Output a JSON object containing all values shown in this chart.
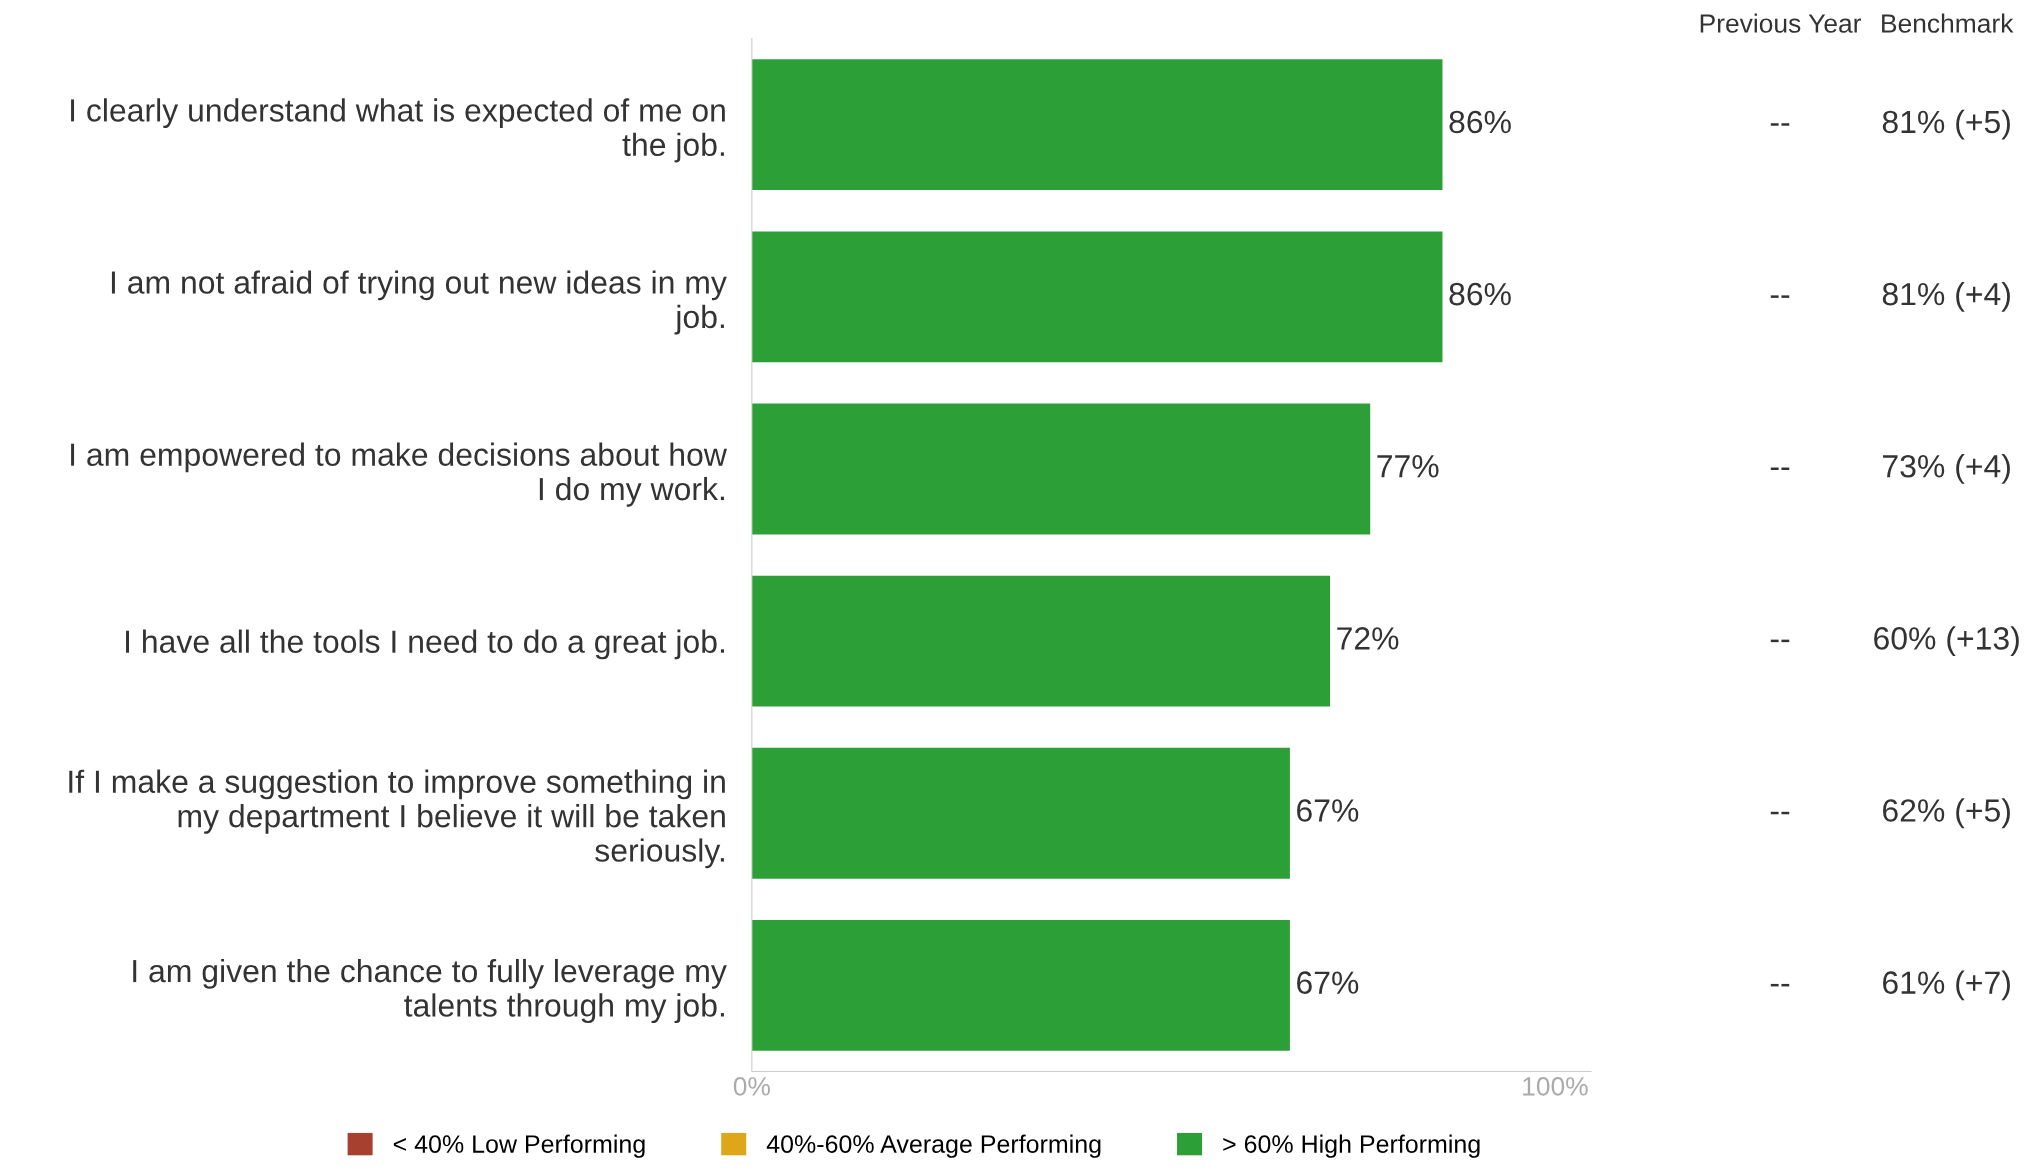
{
  "chart_data": {
    "type": "bar",
    "orientation": "horizontal",
    "categories": [
      "I clearly understand what is expected of me on\nthe job.",
      "I am not afraid of trying out new ideas in my\njob.",
      "I am empowered to make decisions about how\nI do my work.",
      "I have all the tools I need to do a great job.",
      "If I make a suggestion to improve something in\nmy department I believe it will be taken\nseriously.",
      "I am given the chance to fully leverage my\ntalents through my job."
    ],
    "series": [
      {
        "name": "< 40% Low Performing",
        "color": "#a8402f",
        "values": [
          null,
          null,
          null,
          null,
          null,
          null
        ]
      },
      {
        "name": "40%-60% Average Performing",
        "color": "#e0a61a",
        "values": [
          null,
          null,
          null,
          null,
          null,
          null
        ]
      },
      {
        "name": "> 60% High Performing",
        "color": "#2ca037",
        "values": [
          86,
          86,
          77,
          72,
          67,
          67
        ],
        "value_labels": [
          "86%",
          "86%",
          "77%",
          "72%",
          "67%",
          "67%"
        ]
      }
    ],
    "xlim": [
      0,
      104.5
    ],
    "xticks": [
      {
        "value": 0,
        "label": "0%"
      },
      {
        "value": 100,
        "label": "100%"
      }
    ],
    "grid": false,
    "legend": "bottom",
    "annotations": [
      "Previous Year",
      "Benchmark",
      "--",
      "81% (+5)",
      "--",
      "81% (+4)",
      "--",
      "73% (+4)",
      "--",
      "60% (+13)",
      "--",
      "62% (+5)",
      "--",
      "61% (+7)"
    ]
  }
}
